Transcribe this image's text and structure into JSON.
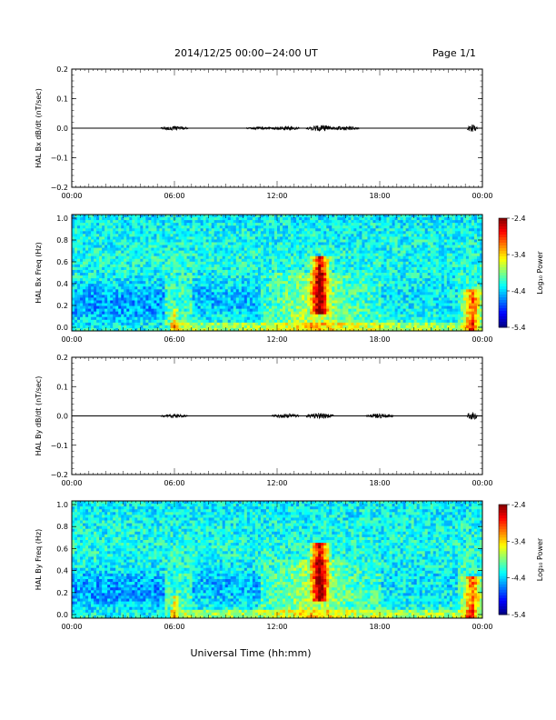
{
  "header": {
    "title": "2014/12/25   00:00−24:00 UT",
    "page": "Page 1/1"
  },
  "x_axis_label": "Universal Time (hh:mm)",
  "time_ticks": [
    "00:00",
    "06:00",
    "12:00",
    "18:00",
    "00:00"
  ],
  "chart_data": [
    {
      "type": "line",
      "ylabel": "HAL Bx dB/dt (nT/sec)",
      "ylim": [
        -0.2,
        0.2
      ],
      "yticks": [
        "0.2",
        "0.1",
        "0.0",
        "−0.1",
        "−0.2"
      ],
      "xlim_hours": [
        0,
        24
      ],
      "baseline": 0.0,
      "activity_bursts_hours": [
        {
          "x": 6.0,
          "amp": 0.006
        },
        {
          "x": 11.0,
          "amp": 0.004
        },
        {
          "x": 12.5,
          "amp": 0.006
        },
        {
          "x": 14.5,
          "amp": 0.008
        },
        {
          "x": 16.0,
          "amp": 0.006
        },
        {
          "x": 23.4,
          "amp": 0.01
        }
      ]
    },
    {
      "type": "heatmap",
      "ylabel": "HAL Bx Freq (Hz)",
      "ylim": [
        0.0,
        1.0
      ],
      "yticks": [
        "1.0",
        "0.8",
        "0.6",
        "0.4",
        "0.2",
        "0.0"
      ],
      "xlim_hours": [
        0,
        24
      ],
      "colorbar": {
        "label": "Log₁₀ Power",
        "ticks": [
          "-2.4",
          "-3.4",
          "-4.4",
          "-5.4"
        ],
        "range": [
          -5.4,
          -2.4
        ]
      },
      "features": [
        {
          "x": 14.5,
          "f_low": 0.2,
          "f_high": 0.6,
          "level": -2.6
        },
        {
          "x": 6.0,
          "f_low": 0.0,
          "f_high": 0.15,
          "level": -3.6
        },
        {
          "x": 23.4,
          "f_low": 0.0,
          "f_high": 0.3,
          "level": -3.0
        }
      ]
    },
    {
      "type": "line",
      "ylabel": "HAL By dB/dt (nT/sec)",
      "ylim": [
        -0.2,
        0.2
      ],
      "yticks": [
        "0.2",
        "0.1",
        "0.0",
        "−0.1",
        "−0.2"
      ],
      "xlim_hours": [
        0,
        24
      ],
      "baseline": 0.0,
      "activity_bursts_hours": [
        {
          "x": 6.0,
          "amp": 0.005
        },
        {
          "x": 12.5,
          "amp": 0.006
        },
        {
          "x": 14.5,
          "amp": 0.008
        },
        {
          "x": 18.0,
          "amp": 0.006
        },
        {
          "x": 23.4,
          "amp": 0.012
        }
      ]
    },
    {
      "type": "heatmap",
      "ylabel": "HAL By Freq (Hz)",
      "ylim": [
        0.0,
        1.0
      ],
      "yticks": [
        "1.0",
        "0.8",
        "0.6",
        "0.4",
        "0.2",
        "0.0"
      ],
      "xlim_hours": [
        0,
        24
      ],
      "colorbar": {
        "label": "Log₁₀ Power",
        "ticks": [
          "-2.4",
          "-3.4",
          "-4.4",
          "-5.4"
        ],
        "range": [
          -5.4,
          -2.4
        ]
      },
      "features": [
        {
          "x": 14.5,
          "f_low": 0.2,
          "f_high": 0.6,
          "level": -2.6
        },
        {
          "x": 6.0,
          "f_low": 0.0,
          "f_high": 0.15,
          "level": -3.6
        },
        {
          "x": 23.4,
          "f_low": 0.0,
          "f_high": 0.3,
          "level": -3.0
        }
      ]
    }
  ]
}
